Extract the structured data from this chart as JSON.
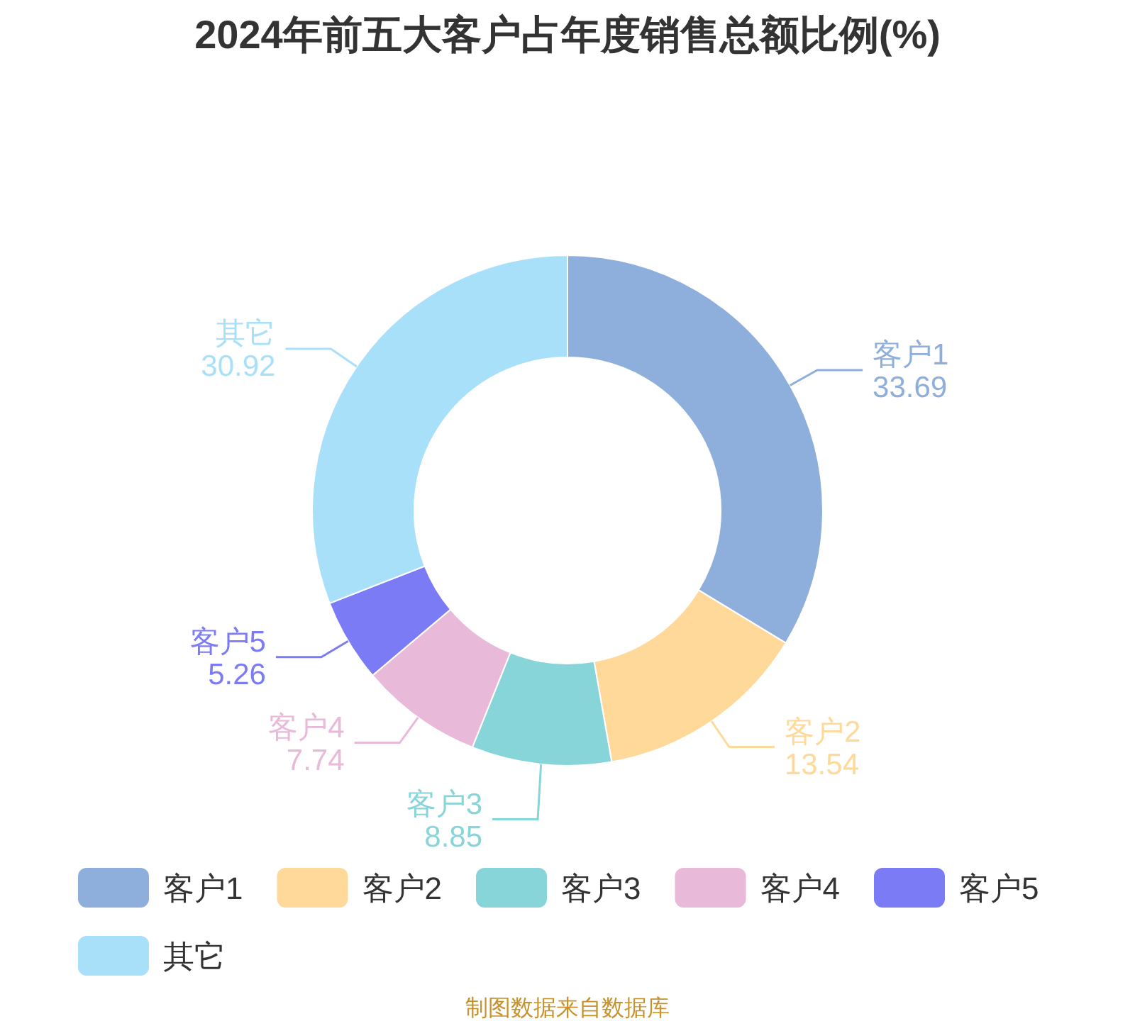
{
  "chart_data": {
    "type": "donut",
    "title": "2024年前五大客户占年度销售总额比例(%)",
    "categories": [
      "客户1",
      "客户2",
      "客户3",
      "客户4",
      "客户5",
      "其它"
    ],
    "values": [
      33.69,
      13.54,
      8.85,
      7.74,
      5.26,
      30.92
    ],
    "colors": [
      "#8eaedb",
      "#ffd999",
      "#87d5d9",
      "#e8b9d9",
      "#7b7bf6",
      "#a8e0fa"
    ],
    "data_labels": true,
    "legend": "bottom",
    "annotations": [
      "制图数据来自数据库"
    ]
  }
}
